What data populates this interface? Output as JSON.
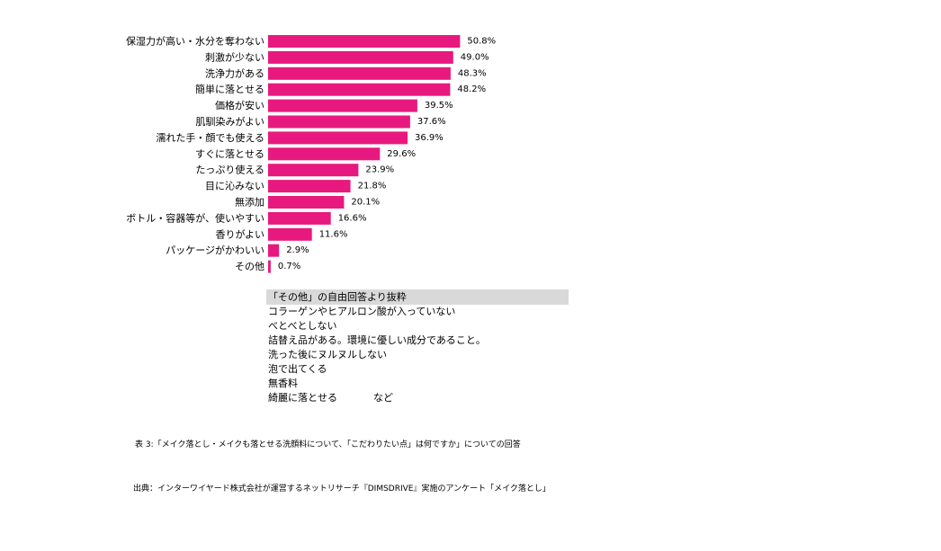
{
  "chart_data": {
    "type": "bar",
    "orientation": "horizontal",
    "categories": [
      "保湿力が高い・水分を奪わない",
      "刺激が少ない",
      "洗浄力がある",
      "簡単に落とせる",
      "価格が安い",
      "肌馴染みがよい",
      "濡れた手・顔でも使える",
      "すぐに落とせる",
      "たっぷり使える",
      "目に沁みない",
      "無添加",
      "ボトル・容器等が、使いやすい",
      "香りがよい",
      "パッケージがかわいい",
      "その他"
    ],
    "values": [
      50.8,
      49.0,
      48.3,
      48.2,
      39.5,
      37.6,
      36.9,
      29.6,
      23.9,
      21.8,
      20.1,
      16.6,
      11.6,
      2.9,
      0.7
    ],
    "value_labels": [
      "50.8%",
      "49.0%",
      "48.3%",
      "48.2%",
      "39.5%",
      "37.6%",
      "36.9%",
      "29.6%",
      "23.9%",
      "21.8%",
      "20.1%",
      "16.6%",
      "11.6%",
      "2.9%",
      "0.7%"
    ],
    "unit": "%",
    "xlim": [
      0,
      100
    ],
    "grid": false,
    "axis_visible": false,
    "legend": "none",
    "bar_color": "#e8197e"
  },
  "other_answers": {
    "title": "「その他」の自由回答より抜粋",
    "items": [
      "コラーゲンやヒアルロン酸が入っていない",
      "べとべとしない",
      "詰替え品がある。環境に優しい成分であること。",
      "洗った後にヌルヌルしない",
      "泡で出てくる",
      "無香料",
      "綺麗に落とせる"
    ],
    "suffix": "など"
  },
  "caption": "表 3:「メイク落とし・メイクも落とせる洗顔料について、「こだわりたい点」は何ですか」についての回答",
  "source": "出典：インターワイヤード株式会社が運営するネットリサーチ『DIMSDRIVE』実施のアンケート「メイク落とし」"
}
